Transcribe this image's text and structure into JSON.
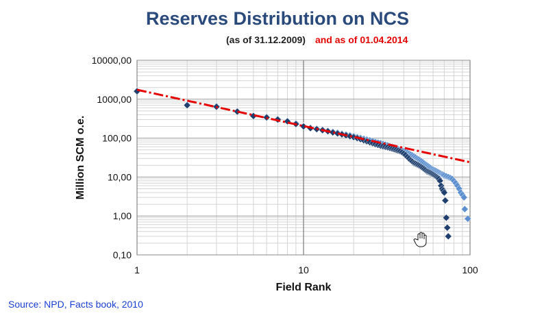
{
  "header": {
    "title": "Reserves Distribution on NCS",
    "subtitle_2009": "(as of 31.12.2009)",
    "subtitle_2014": "and as of 01.04.2014"
  },
  "footer": {
    "source": "Source: NPD, Facts book, 2010"
  },
  "colors": {
    "title": "#2b4a7c",
    "series_2014": "#1f3f6e",
    "series_2009": "#5b8fcf",
    "fit_line": "#e60000",
    "source_text": "#1a3fd6"
  },
  "chart_data": {
    "type": "scatter",
    "title": "Reserves Distribution on NCS",
    "xlabel": "Field Rank",
    "ylabel": "Million SCM o.e.",
    "x_scale": "log",
    "y_scale": "log",
    "xlim": [
      1,
      100
    ],
    "ylim": [
      0.1,
      10000
    ],
    "x_ticks": [
      1,
      10,
      100
    ],
    "x_tick_labels": [
      "1",
      "10",
      "100"
    ],
    "y_ticks": [
      0.1,
      1,
      10,
      100,
      1000,
      10000
    ],
    "y_tick_labels": [
      "0,10",
      "1,00",
      "10,00",
      "100,00",
      "1000,00",
      "10000,00"
    ],
    "grid": true,
    "series": [
      {
        "marker": "diamond",
        "color": "#1f3f6e",
        "points": [
          [
            1,
            1600
          ],
          [
            2,
            700
          ],
          [
            3,
            640
          ],
          [
            4,
            480
          ],
          [
            5,
            370
          ],
          [
            6,
            340
          ],
          [
            7,
            300
          ],
          [
            8,
            270
          ],
          [
            9,
            230
          ],
          [
            10,
            200
          ],
          [
            11,
            180
          ],
          [
            12,
            170
          ],
          [
            13,
            160
          ],
          [
            14,
            150
          ],
          [
            15,
            140
          ],
          [
            16,
            132
          ],
          [
            17,
            125
          ],
          [
            18,
            118
          ],
          [
            19,
            112
          ],
          [
            20,
            106
          ],
          [
            21,
            100
          ],
          [
            22,
            94
          ],
          [
            23,
            88
          ],
          [
            24,
            83
          ],
          [
            25,
            78
          ],
          [
            26,
            74
          ],
          [
            27,
            70
          ],
          [
            28,
            67
          ],
          [
            29,
            64
          ],
          [
            30,
            62
          ],
          [
            31,
            60
          ],
          [
            32,
            58
          ],
          [
            33,
            56
          ],
          [
            34,
            54
          ],
          [
            35,
            52
          ],
          [
            36,
            50
          ],
          [
            37,
            48
          ],
          [
            38,
            46
          ],
          [
            39,
            43
          ],
          [
            40,
            40
          ],
          [
            41,
            37
          ],
          [
            42,
            33
          ],
          [
            43,
            30
          ],
          [
            44,
            27
          ],
          [
            45,
            25
          ],
          [
            46,
            23
          ],
          [
            47,
            22
          ],
          [
            48,
            21
          ],
          [
            49,
            20
          ],
          [
            50,
            19
          ],
          [
            51,
            18
          ],
          [
            52,
            17
          ],
          [
            53,
            16
          ],
          [
            54,
            15
          ],
          [
            55,
            14
          ],
          [
            56,
            13.5
          ],
          [
            57,
            13
          ],
          [
            58,
            12.5
          ],
          [
            59,
            12
          ],
          [
            60,
            11.5
          ],
          [
            61,
            11
          ],
          [
            62,
            10.5
          ],
          [
            63,
            10
          ],
          [
            64,
            9.5
          ],
          [
            65,
            9
          ],
          [
            66,
            8
          ],
          [
            67,
            6
          ],
          [
            68,
            5
          ],
          [
            69,
            4.5
          ],
          [
            70,
            4
          ],
          [
            71,
            2.5
          ],
          [
            72,
            0.9
          ],
          [
            73,
            0.5
          ],
          [
            74,
            0.3
          ]
        ]
      },
      {
        "marker": "diamond",
        "color": "#5b8fcf",
        "points": [
          [
            1,
            1650
          ],
          [
            2,
            720
          ],
          [
            3,
            660
          ],
          [
            4,
            490
          ],
          [
            5,
            380
          ],
          [
            6,
            350
          ],
          [
            7,
            310
          ],
          [
            8,
            275
          ],
          [
            9,
            240
          ],
          [
            10,
            205
          ],
          [
            11,
            185
          ],
          [
            12,
            175
          ],
          [
            13,
            165
          ],
          [
            14,
            155
          ],
          [
            15,
            145
          ],
          [
            16,
            138
          ],
          [
            17,
            130
          ],
          [
            18,
            124
          ],
          [
            19,
            118
          ],
          [
            20,
            112
          ],
          [
            21,
            106
          ],
          [
            22,
            101
          ],
          [
            23,
            96
          ],
          [
            24,
            92
          ],
          [
            25,
            88
          ],
          [
            26,
            84
          ],
          [
            27,
            80
          ],
          [
            28,
            77
          ],
          [
            29,
            74
          ],
          [
            30,
            71
          ],
          [
            31,
            68
          ],
          [
            32,
            65
          ],
          [
            33,
            62
          ],
          [
            34,
            60
          ],
          [
            35,
            57
          ],
          [
            36,
            55
          ],
          [
            37,
            52
          ],
          [
            38,
            50
          ],
          [
            39,
            48
          ],
          [
            40,
            46
          ],
          [
            41,
            44
          ],
          [
            42,
            42
          ],
          [
            43,
            40
          ],
          [
            44,
            38
          ],
          [
            45,
            36
          ],
          [
            46,
            34
          ],
          [
            47,
            32
          ],
          [
            48,
            30
          ],
          [
            49,
            28.5
          ],
          [
            50,
            27
          ],
          [
            51,
            25.5
          ],
          [
            52,
            24
          ],
          [
            53,
            22.5
          ],
          [
            54,
            21
          ],
          [
            55,
            20
          ],
          [
            56,
            19
          ],
          [
            57,
            18
          ],
          [
            58,
            17
          ],
          [
            59,
            16
          ],
          [
            60,
            15.5
          ],
          [
            61,
            15
          ],
          [
            62,
            14.5
          ],
          [
            63,
            14
          ],
          [
            64,
            13.5
          ],
          [
            65,
            13
          ],
          [
            66,
            12.5
          ],
          [
            67,
            12
          ],
          [
            68,
            11.7
          ],
          [
            69,
            11.4
          ],
          [
            70,
            11
          ],
          [
            72,
            10.5
          ],
          [
            74,
            10
          ],
          [
            76,
            9.5
          ],
          [
            78,
            9
          ],
          [
            80,
            8
          ],
          [
            82,
            7
          ],
          [
            84,
            6
          ],
          [
            86,
            5
          ],
          [
            88,
            4
          ],
          [
            90,
            3.5
          ],
          [
            92,
            3
          ],
          [
            93,
            1.5
          ],
          [
            97,
            0.85
          ]
        ]
      }
    ],
    "trend_line": {
      "style": "dash-dot",
      "color": "#e60000",
      "points": [
        [
          1,
          1750
        ],
        [
          100,
          24
        ]
      ]
    }
  }
}
